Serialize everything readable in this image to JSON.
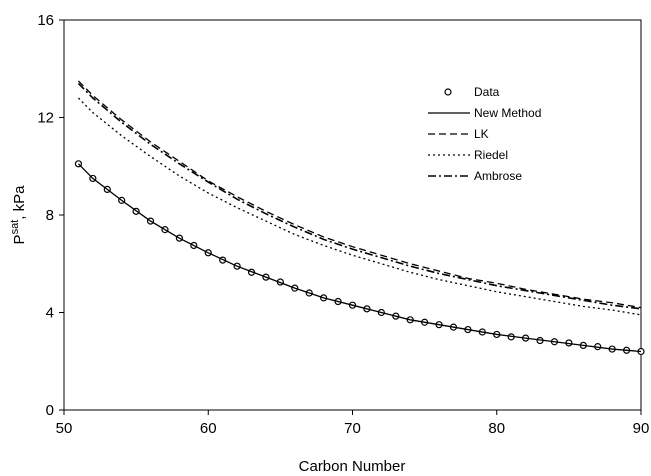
{
  "chart_data": {
    "type": "line",
    "xlabel": "Carbon Number",
    "ylabel_main": "P",
    "ylabel_sup": "sat",
    "ylabel_tail": ", kPa",
    "xlim": [
      50,
      90
    ],
    "ylim": [
      0,
      16
    ],
    "xticks": [
      50,
      60,
      70,
      80,
      90
    ],
    "yticks": [
      0,
      4,
      8,
      12,
      16
    ],
    "grid": false,
    "legend_position": "upper-right",
    "series": [
      {
        "name": "Data",
        "style": "markers",
        "x": [
          51,
          52,
          53,
          54,
          55,
          56,
          57,
          58,
          59,
          60,
          61,
          62,
          63,
          64,
          65,
          66,
          67,
          68,
          69,
          70,
          71,
          72,
          73,
          74,
          75,
          76,
          77,
          78,
          79,
          80,
          81,
          82,
          83,
          84,
          85,
          86,
          87,
          88,
          89,
          90
        ],
        "y": [
          10.1,
          9.5,
          9.05,
          8.6,
          8.15,
          7.75,
          7.4,
          7.05,
          6.75,
          6.45,
          6.15,
          5.9,
          5.65,
          5.45,
          5.25,
          5.0,
          4.8,
          4.6,
          4.45,
          4.3,
          4.15,
          4.0,
          3.85,
          3.7,
          3.6,
          3.5,
          3.4,
          3.3,
          3.2,
          3.1,
          3.0,
          2.95,
          2.85,
          2.8,
          2.75,
          2.65,
          2.6,
          2.5,
          2.45,
          2.4
        ]
      },
      {
        "name": "New Method",
        "style": "solid",
        "x": [
          51,
          52,
          54,
          56,
          58,
          60,
          62,
          64,
          66,
          68,
          70,
          72,
          74,
          76,
          78,
          80,
          82,
          84,
          86,
          88,
          90
        ],
        "y": [
          10.1,
          9.5,
          8.6,
          7.75,
          7.05,
          6.45,
          5.9,
          5.45,
          5.0,
          4.6,
          4.3,
          4.0,
          3.7,
          3.5,
          3.3,
          3.1,
          2.95,
          2.8,
          2.65,
          2.5,
          2.4
        ]
      },
      {
        "name": "LK",
        "style": "dashed",
        "x": [
          51,
          52,
          54,
          56,
          58,
          60,
          62,
          64,
          66,
          68,
          70,
          72,
          74,
          76,
          78,
          80,
          82,
          84,
          86,
          88,
          90
        ],
        "y": [
          13.5,
          12.9,
          11.9,
          11.0,
          10.2,
          9.4,
          8.75,
          8.15,
          7.6,
          7.1,
          6.7,
          6.35,
          6.0,
          5.7,
          5.4,
          5.2,
          4.95,
          4.75,
          4.55,
          4.4,
          4.2
        ]
      },
      {
        "name": "Riedel",
        "style": "dotted",
        "x": [
          51,
          52,
          54,
          56,
          58,
          60,
          62,
          64,
          66,
          68,
          70,
          72,
          74,
          76,
          78,
          80,
          82,
          84,
          86,
          88,
          90
        ],
        "y": [
          12.8,
          12.2,
          11.25,
          10.4,
          9.6,
          8.9,
          8.3,
          7.75,
          7.2,
          6.75,
          6.35,
          6.0,
          5.65,
          5.35,
          5.1,
          4.85,
          4.65,
          4.45,
          4.25,
          4.1,
          3.9
        ]
      },
      {
        "name": "Ambrose",
        "style": "dashdot",
        "x": [
          51,
          52,
          54,
          56,
          58,
          60,
          62,
          64,
          66,
          68,
          70,
          72,
          74,
          76,
          78,
          80,
          82,
          84,
          86,
          88,
          90
        ],
        "y": [
          13.4,
          12.8,
          11.8,
          10.9,
          10.1,
          9.35,
          8.65,
          8.05,
          7.5,
          7.0,
          6.6,
          6.25,
          5.9,
          5.6,
          5.35,
          5.1,
          4.9,
          4.7,
          4.5,
          4.3,
          4.15
        ]
      }
    ]
  }
}
